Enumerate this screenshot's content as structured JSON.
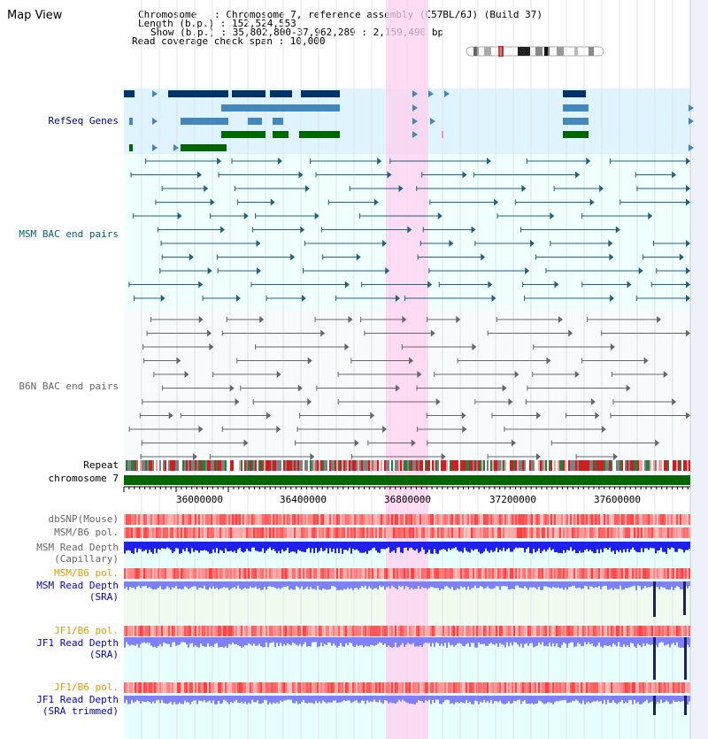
{
  "title": "Map View",
  "header": {
    "chromosome_line": "Chromosome   : Chromosome 7, reference assembly (C57BL/6J) (Build 37)",
    "length_line": "Length (b.p.) : 152,524,553",
    "show_line": "Show (b.p.) : 35,802,800-37,962,289 : 2,159,490 bp",
    "span_line": "Read coverage check span : 10,000"
  },
  "tracks": {
    "refseq": "RefSeq Genes",
    "msm_bac": "MSM BAC end pairs",
    "b6n_bac": "B6N BAC end pairs",
    "repeat": "Repeat",
    "chromosome": "chromosome 7",
    "dbsnp": "dbSNP(Mouse)",
    "msm_b6_pol": "MSM/B6 pol.",
    "msm_depth_cap_1": "MSM Read Depth",
    "msm_depth_cap_2": "(Capillary)",
    "msm_b6_pol_2": "MSM/B6 pol.",
    "msm_depth_sra_1": "MSM Read Depth",
    "msm_depth_sra_2": "(SRA)",
    "jf1_b6_pol": "JF1/B6 pol.",
    "jf1_depth_sra_1": "JF1 Read Depth",
    "jf1_depth_sra_2": "(SRA)",
    "jf1_b6_pol_2": "JF1/B6 pol.",
    "jf1_depth_trim_1": "JF1 Read Depth",
    "jf1_depth_trim_2": "(SRA trimmed)"
  },
  "axis": {
    "ticks": [
      "36000000",
      "36400000",
      "36800000",
      "37200000",
      "37600000"
    ]
  },
  "colors": {
    "refseq_bg": "#e0f4ff",
    "bac_bg": "#f0ffff",
    "highlight": "#ffd0f0",
    "gene_dark": "#003366",
    "gene_mid": "#4488bb",
    "gene_green": "#006600",
    "msm_bac": "#206080",
    "b6n_bac": "#666666",
    "depth_cap": "#2020ee",
    "depth_sra": "#8080ff",
    "chrom_bar": "#006600",
    "pol_red": "#ff3030"
  }
}
